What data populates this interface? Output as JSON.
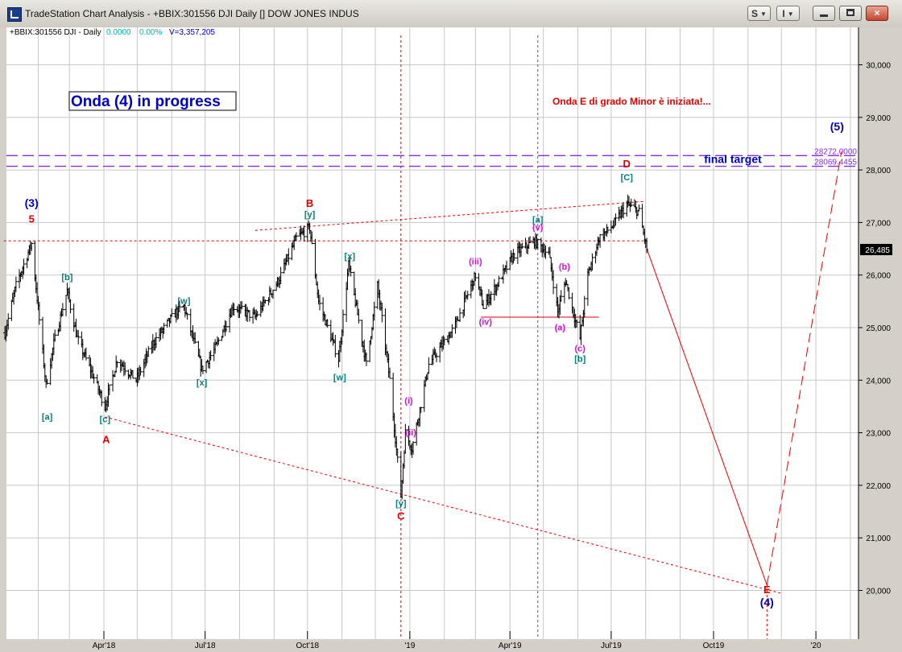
{
  "window": {
    "title": "TradeStation Chart Analysis - +BBIX:301556 DJI Daily [] DOW JONES INDUS",
    "btn_s": "S",
    "btn_i": "I",
    "close_glyph": "×"
  },
  "info": {
    "symbol": "+BBIX:301556 DJI - Daily",
    "change": "0.0000",
    "change_pct": "0.00%",
    "volume": "V=3,357,205"
  },
  "colors": {
    "wave_red": "#e00000",
    "wave_teal": "#008080",
    "wave_magenta": "#d010d0",
    "wave_blue": "#0000c0",
    "target_purple": "#8a2be2",
    "price_bar": "#000000"
  },
  "chart_data": {
    "type": "ohlc",
    "title": "Onda (4) in progress",
    "subtitle": "Onda E di grado Minor è iniziata!...",
    "x_tick_labels": [
      "Apr'18",
      "Jul'18",
      "Oct'18",
      "'19",
      "Apr'19",
      "Jul'19",
      "Oct19",
      "'20"
    ],
    "y_ticks": [
      20000,
      21000,
      22000,
      23000,
      24000,
      25000,
      26000,
      27000,
      28000,
      29000,
      30000
    ],
    "y_tick_labels": [
      "20,000",
      "21,000",
      "22,000",
      "23,000",
      "24,000",
      "25,000",
      "26,000",
      "27,000",
      "28,000",
      "29,000",
      "30,000"
    ],
    "ylim": [
      19200,
      30700
    ],
    "last_price_label": "26,485",
    "target_levels": [
      {
        "label": "28272.0000",
        "value": 28272
      },
      {
        "label": "28069.4455",
        "value": 28069.4455
      }
    ],
    "target_text": "final target",
    "price_path": [
      {
        "date": "2018-01-02",
        "price": 24900
      },
      {
        "date": "2018-01-12",
        "price": 25800
      },
      {
        "date": "2018-01-26",
        "price": 26600
      },
      {
        "date": "2018-02-08",
        "price": 23900
      },
      {
        "date": "2018-02-15",
        "price": 24700
      },
      {
        "date": "2018-02-27",
        "price": 25700
      },
      {
        "date": "2018-03-08",
        "price": 24800
      },
      {
        "date": "2018-03-22",
        "price": 24100
      },
      {
        "date": "2018-04-02",
        "price": 23500
      },
      {
        "date": "2018-04-13",
        "price": 24400
      },
      {
        "date": "2018-04-30",
        "price": 24000
      },
      {
        "date": "2018-05-15",
        "price": 24700
      },
      {
        "date": "2018-06-05",
        "price": 25300
      },
      {
        "date": "2018-06-12",
        "price": 25400
      },
      {
        "date": "2018-06-28",
        "price": 24200
      },
      {
        "date": "2018-07-10",
        "price": 24600
      },
      {
        "date": "2018-07-26",
        "price": 25400
      },
      {
        "date": "2018-08-15",
        "price": 25200
      },
      {
        "date": "2018-09-05",
        "price": 25900
      },
      {
        "date": "2018-09-21",
        "price": 26700
      },
      {
        "date": "2018-10-03",
        "price": 26900
      },
      {
        "date": "2018-10-11",
        "price": 25500
      },
      {
        "date": "2018-10-29",
        "price": 24400
      },
      {
        "date": "2018-11-07",
        "price": 26200
      },
      {
        "date": "2018-11-23",
        "price": 24300
      },
      {
        "date": "2018-12-03",
        "price": 25800
      },
      {
        "date": "2018-12-14",
        "price": 24000
      },
      {
        "date": "2018-12-24",
        "price": 21800
      },
      {
        "date": "2018-12-28",
        "price": 23000
      },
      {
        "date": "2019-01-03",
        "price": 22700
      },
      {
        "date": "2019-01-18",
        "price": 24300
      },
      {
        "date": "2019-02-10",
        "price": 25000
      },
      {
        "date": "2019-03-01",
        "price": 26000
      },
      {
        "date": "2019-03-08",
        "price": 25400
      },
      {
        "date": "2019-03-20",
        "price": 25800
      },
      {
        "date": "2019-04-05",
        "price": 26400
      },
      {
        "date": "2019-04-23",
        "price": 26650
      },
      {
        "date": "2019-05-06",
        "price": 26400
      },
      {
        "date": "2019-05-14",
        "price": 25300
      },
      {
        "date": "2019-05-21",
        "price": 25900
      },
      {
        "date": "2019-05-29",
        "price": 25200
      },
      {
        "date": "2019-06-03",
        "price": 24800
      },
      {
        "date": "2019-06-10",
        "price": 26000
      },
      {
        "date": "2019-06-20",
        "price": 26700
      },
      {
        "date": "2019-07-03",
        "price": 26950
      },
      {
        "date": "2019-07-15",
        "price": 27350
      },
      {
        "date": "2019-07-26",
        "price": 27200
      },
      {
        "date": "2019-08-02",
        "price": 26485
      }
    ],
    "wave_labels": [
      {
        "text": "(3)",
        "date": "2018-01-26",
        "price": 27300,
        "color": "blue"
      },
      {
        "text": "5",
        "date": "2018-01-26",
        "price": 27000,
        "color": "red"
      },
      {
        "text": "[a]",
        "date": "2018-02-09",
        "price": 23250,
        "color": "teal"
      },
      {
        "text": "[b]",
        "date": "2018-02-27",
        "price": 25900,
        "color": "teal"
      },
      {
        "text": "[c]",
        "date": "2018-04-02",
        "price": 23200,
        "color": "teal"
      },
      {
        "text": "A",
        "date": "2018-04-03",
        "price": 22800,
        "color": "red"
      },
      {
        "text": "[w]",
        "date": "2018-06-12",
        "price": 25450,
        "color": "teal"
      },
      {
        "text": "[x]",
        "date": "2018-06-28",
        "price": 23900,
        "color": "teal"
      },
      {
        "text": "B",
        "date": "2018-10-03",
        "price": 27300,
        "color": "red"
      },
      {
        "text": "[y]",
        "date": "2018-10-03",
        "price": 27100,
        "color": "teal"
      },
      {
        "text": "[x]",
        "date": "2018-11-08",
        "price": 26300,
        "color": "teal"
      },
      {
        "text": "[w]",
        "date": "2018-10-30",
        "price": 24000,
        "color": "teal"
      },
      {
        "text": "(i)",
        "date": "2018-12-31",
        "price": 23550,
        "color": "magenta"
      },
      {
        "text": "(ii)",
        "date": "2019-01-02",
        "price": 22950,
        "color": "magenta"
      },
      {
        "text": "[y]",
        "date": "2018-12-24",
        "price": 21600,
        "color": "teal"
      },
      {
        "text": "C",
        "date": "2018-12-24",
        "price": 21350,
        "color": "red"
      },
      {
        "text": "(iii)",
        "date": "2019-03-01",
        "price": 26200,
        "color": "magenta"
      },
      {
        "text": "(iv)",
        "date": "2019-03-10",
        "price": 25050,
        "color": "magenta"
      },
      {
        "text": "[a]",
        "date": "2019-04-26",
        "price": 27000,
        "color": "teal"
      },
      {
        "text": "(v)",
        "date": "2019-04-26",
        "price": 26850,
        "color": "magenta"
      },
      {
        "text": "(b)",
        "date": "2019-05-20",
        "price": 26100,
        "color": "magenta"
      },
      {
        "text": "(a)",
        "date": "2019-05-16",
        "price": 24950,
        "color": "magenta"
      },
      {
        "text": "(c)",
        "date": "2019-06-03",
        "price": 24550,
        "color": "magenta"
      },
      {
        "text": "[b]",
        "date": "2019-06-03",
        "price": 24350,
        "color": "teal"
      },
      {
        "text": "D",
        "date": "2019-07-15",
        "price": 28050,
        "color": "red"
      },
      {
        "text": "[C]",
        "date": "2019-07-15",
        "price": 27800,
        "color": "teal"
      },
      {
        "text": "E",
        "date": "2019-11-18",
        "price": 19950,
        "color": "red"
      },
      {
        "text": "(4)",
        "date": "2019-11-18",
        "price": 19700,
        "color": "blue"
      },
      {
        "text": "(5)",
        "date": "2020-01-20",
        "price": 28750,
        "color": "blue"
      }
    ],
    "trendlines": [
      {
        "from": {
          "date": "2018-04-02",
          "price": 23300
        },
        "to": {
          "date": "2019-11-30",
          "price": 19950
        },
        "style": "dotted",
        "color": "red"
      },
      {
        "from": {
          "date": "2018-08-15",
          "price": 26850
        },
        "to": {
          "date": "2019-07-30",
          "price": 27400
        },
        "style": "dotted",
        "color": "red"
      },
      {
        "from": {
          "date": "2018-01-01",
          "price": 26650
        },
        "to": {
          "date": "2019-07-30",
          "price": 26650
        },
        "style": "dotted",
        "color": "red"
      },
      {
        "from": {
          "date": "2019-03-06",
          "price": 25200
        },
        "to": {
          "date": "2019-06-20",
          "price": 25200
        },
        "style": "solid",
        "color": "red"
      },
      {
        "from": {
          "date": "2019-08-02",
          "price": 26500
        },
        "to": {
          "date": "2019-11-18",
          "price": 20100
        },
        "style": "solid",
        "color": "red"
      },
      {
        "from": {
          "date": "2019-11-18",
          "price": 20100
        },
        "to": {
          "date": "2020-01-24",
          "price": 28350
        },
        "style": "dashed",
        "color": "red"
      }
    ],
    "vertical_markers": [
      {
        "date": "2018-12-24",
        "color": "red"
      },
      {
        "date": "2019-04-26",
        "color": "purple"
      },
      {
        "date": "2019-11-18",
        "color": "red"
      }
    ]
  }
}
